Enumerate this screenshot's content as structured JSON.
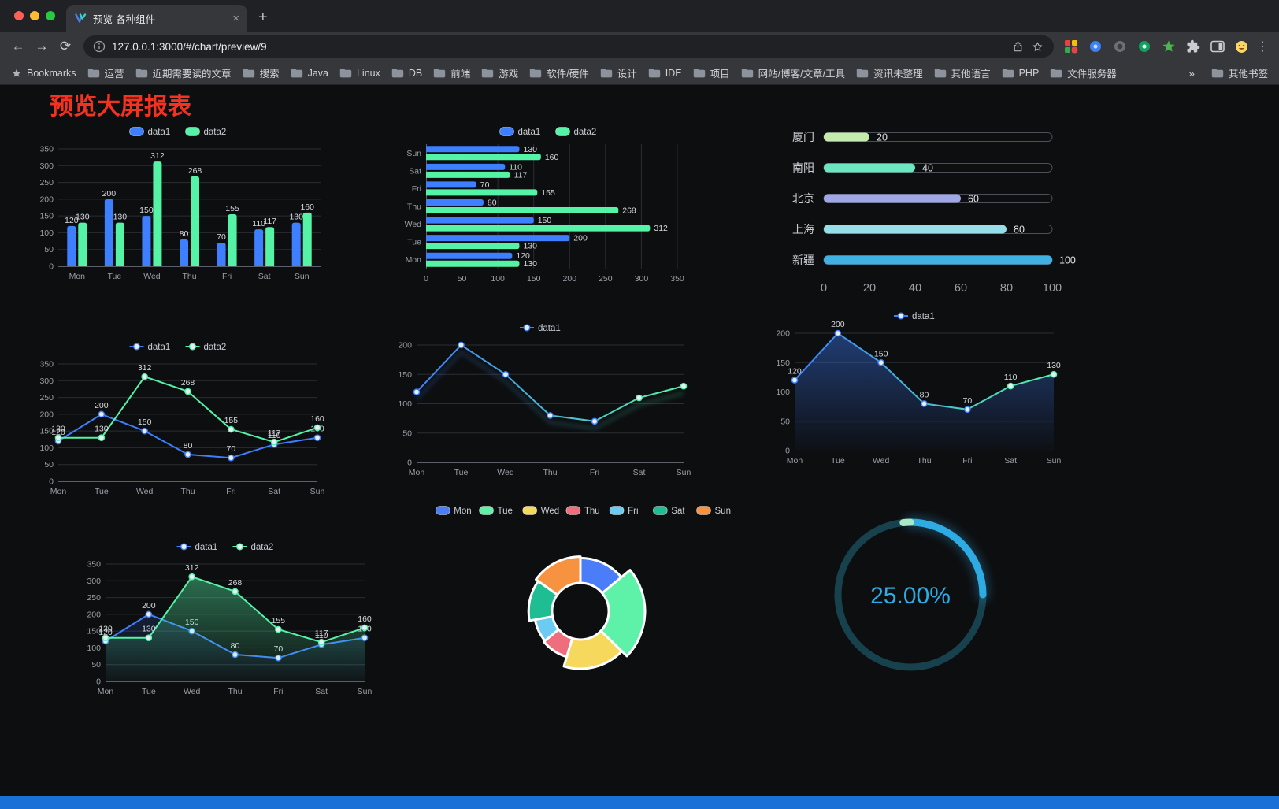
{
  "browser": {
    "tab_title": "预览-各种组件",
    "close_glyph": "×",
    "new_tab_glyph": "+",
    "back_glyph": "←",
    "forward_glyph": "→",
    "reload_glyph": "⟳",
    "url": "127.0.0.1:3000/#/chart/preview/9",
    "menu_glyph": "⋮",
    "bookmarks_bar": {
      "star_label": "Bookmarks",
      "folders": [
        "运营",
        "近期需要读的文章",
        "搜索",
        "Java",
        "Linux",
        "DB",
        "前端",
        "游戏",
        "软件/硬件",
        "设计",
        "IDE",
        "项目",
        "网站/博客/文章/工具",
        "资讯未整理",
        "其他语言",
        "PHP",
        "文件服务器"
      ],
      "overflow_glyph": "»",
      "other_bookmarks": "其他书签"
    }
  },
  "page": {
    "title": "预览大屏报表",
    "title_color": "#f5321f",
    "background": "#0d0e10",
    "footer_color": "#1b70d8"
  },
  "chart_data": [
    {
      "id": "c1",
      "type": "bar",
      "categories": [
        "Mon",
        "Tue",
        "Wed",
        "Thu",
        "Fri",
        "Sat",
        "Sun"
      ],
      "series": [
        {
          "name": "data1",
          "color": "#3D7FFF",
          "values": [
            120,
            200,
            150,
            80,
            70,
            110,
            130
          ]
        },
        {
          "name": "data2",
          "color": "#54F3A6",
          "values": [
            130,
            130,
            312,
            268,
            155,
            117,
            160
          ]
        }
      ],
      "ylim": [
        0,
        350
      ],
      "ytick": 50
    },
    {
      "id": "c2",
      "type": "hbar",
      "categories": [
        "Mon",
        "Tue",
        "Wed",
        "Thu",
        "Fri",
        "Sat",
        "Sun"
      ],
      "series": [
        {
          "name": "data1",
          "color": "#3D7FFF",
          "values": [
            120,
            200,
            150,
            80,
            70,
            110,
            130
          ]
        },
        {
          "name": "data2",
          "color": "#54F3A6",
          "values": [
            130,
            130,
            312,
            268,
            155,
            117,
            160
          ]
        }
      ],
      "xlim": [
        0,
        350
      ],
      "xtick": 50
    },
    {
      "id": "c3",
      "type": "capsule",
      "max": 100,
      "xticks": [
        0,
        20,
        40,
        60,
        80,
        100
      ],
      "rows": [
        {
          "label": "厦门",
          "value": 20,
          "color": "#c4ebad"
        },
        {
          "label": "南阳",
          "value": 40,
          "color": "#6be6c1"
        },
        {
          "label": "北京",
          "value": 60,
          "color": "#a0a7e6"
        },
        {
          "label": "上海",
          "value": 80,
          "color": "#96dee8"
        },
        {
          "label": "新疆",
          "value": 100,
          "color": "#3fb1e3"
        }
      ]
    },
    {
      "id": "c4",
      "type": "line",
      "categories": [
        "Mon",
        "Tue",
        "Wed",
        "Thu",
        "Fri",
        "Sat",
        "Sun"
      ],
      "series": [
        {
          "name": "data1",
          "color": "#3D7FFF",
          "values": [
            120,
            200,
            150,
            80,
            70,
            110,
            130
          ]
        },
        {
          "name": "data2",
          "color": "#54F3A6",
          "values": [
            130,
            130,
            312,
            268,
            155,
            117,
            160
          ]
        }
      ],
      "ylim": [
        0,
        350
      ],
      "ytick": 50,
      "labels": true
    },
    {
      "id": "c5",
      "type": "line",
      "categories": [
        "Mon",
        "Tue",
        "Wed",
        "Thu",
        "Fri",
        "Sat",
        "Sun"
      ],
      "series": [
        {
          "name": "data1",
          "gradient": [
            "#3D7FFF",
            "#54F3A6"
          ],
          "values": [
            120,
            200,
            150,
            80,
            70,
            110,
            130
          ]
        }
      ],
      "ylim": [
        0,
        200
      ],
      "ytick": 50,
      "labels": false,
      "shadow": true
    },
    {
      "id": "c6",
      "type": "line",
      "categories": [
        "Mon",
        "Tue",
        "Wed",
        "Thu",
        "Fri",
        "Sat",
        "Sun"
      ],
      "series": [
        {
          "name": "data1",
          "gradient": [
            "#3D7FFF",
            "#54F3A6"
          ],
          "area": "#3D7FFF",
          "areaOpacity": 0.42,
          "values": [
            120,
            200,
            150,
            80,
            70,
            110,
            130
          ]
        }
      ],
      "ylim": [
        0,
        200
      ],
      "ytick": 50,
      "labels": true
    },
    {
      "id": "c7",
      "type": "line",
      "categories": [
        "Mon",
        "Tue",
        "Wed",
        "Thu",
        "Fri",
        "Sat",
        "Sun"
      ],
      "series": [
        {
          "name": "data1",
          "color": "#3D7FFF",
          "area": "#3D7FFF",
          "areaOpacity": 0.16,
          "values": [
            120,
            200,
            150,
            80,
            70,
            110,
            130
          ]
        },
        {
          "name": "data2",
          "color": "#54F3A6",
          "area": "#54F3A6",
          "areaOpacity": 0.42,
          "values": [
            130,
            130,
            312,
            268,
            155,
            117,
            160
          ]
        }
      ],
      "ylim": [
        0,
        350
      ],
      "ytick": 50,
      "labels": true
    },
    {
      "id": "c8",
      "type": "rose",
      "items": [
        {
          "name": "Mon",
          "value": 120,
          "color": "#4A7DF7"
        },
        {
          "name": "Tue",
          "value": 200,
          "color": "#5EF2A8"
        },
        {
          "name": "Wed",
          "value": 150,
          "color": "#F6D85C"
        },
        {
          "name": "Thu",
          "value": 80,
          "color": "#EE6E7E"
        },
        {
          "name": "Fri",
          "value": 70,
          "color": "#6CCBF2"
        },
        {
          "name": "Sat",
          "value": 110,
          "color": "#1EBE92"
        },
        {
          "name": "Sun",
          "value": 130,
          "color": "#F69240"
        }
      ]
    },
    {
      "id": "c9",
      "type": "gauge",
      "percent": 25,
      "label": "25.00%",
      "color": "#2fabe3",
      "track": "#17414d",
      "pale": "#a7e8c5"
    }
  ]
}
